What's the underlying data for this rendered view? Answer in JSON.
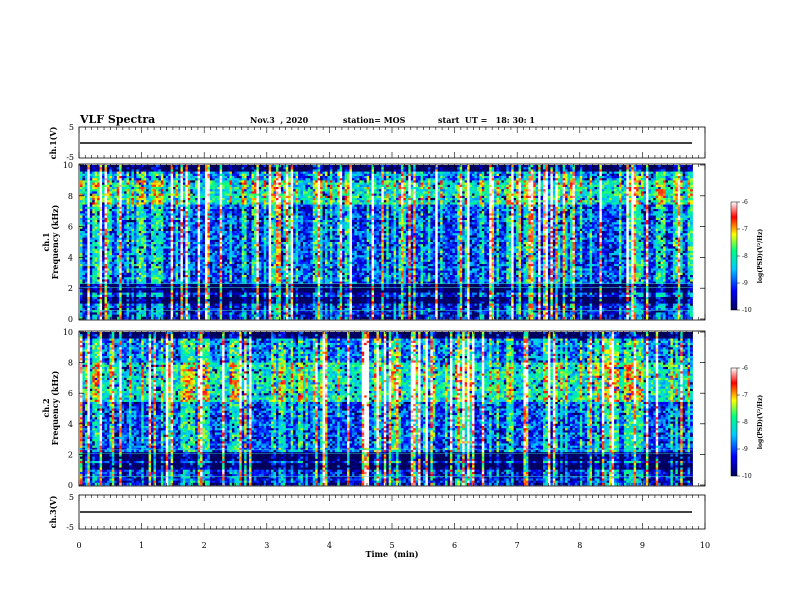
{
  "header": {
    "title": "VLF Spectra",
    "date": "Nov.3  , 2020",
    "station": "station= MOS",
    "start": "start  UT =   18: 30: 1"
  },
  "chart_data": [
    {
      "type": "line",
      "panel": "ch1-waveform",
      "ylabel": "ch.1(V)",
      "ylim": [
        -5,
        5
      ],
      "y_ticks": [
        "5",
        "-5"
      ],
      "x": [
        0,
        9.8
      ],
      "values": [
        0,
        0
      ]
    },
    {
      "type": "heatmap",
      "panel": "ch1-spectrogram",
      "ylabel": "ch.1\nFrequency  (kHz)",
      "ylim": [
        0,
        10
      ],
      "y_ticks": [
        "0",
        "2",
        "4",
        "6",
        "8",
        "10"
      ],
      "xlim": [
        0,
        10
      ],
      "data_end_min": 9.8,
      "peak_band_khz": [
        7.5,
        9.0
      ],
      "strong_band_khz": [
        0,
        2.2
      ],
      "colorbar": {
        "label": "log(PSD)(V²/Hz)",
        "range": [
          -10,
          -6
        ],
        "ticks": [
          "-6",
          "-7",
          "-8",
          "-9",
          "-10"
        ]
      }
    },
    {
      "type": "heatmap",
      "panel": "ch2-spectrogram",
      "ylabel": "ch.2\nFrequency  (kHz)",
      "ylim": [
        0,
        10
      ],
      "y_ticks": [
        "0",
        "2",
        "4",
        "6",
        "8",
        "10"
      ],
      "xlim": [
        0,
        10
      ],
      "data_end_min": 9.8,
      "peak_band_khz": [
        5.5,
        8.0
      ],
      "strong_band_khz": [
        0,
        2.0
      ],
      "colorbar": {
        "label": "log(PSD)(V²/Hz)",
        "range": [
          -10,
          -6
        ],
        "ticks": [
          "-6",
          "-7",
          "-8",
          "-9",
          "-10"
        ]
      }
    },
    {
      "type": "line",
      "panel": "ch3-waveform",
      "ylabel": "ch.3(V)",
      "ylim": [
        -5,
        5
      ],
      "y_ticks": [
        "5",
        "-5"
      ],
      "x": [
        0,
        9.8
      ],
      "values": [
        0,
        0
      ]
    }
  ],
  "x_axis": {
    "label": "Time  (min)",
    "range": [
      0,
      10
    ],
    "ticks": [
      "0",
      "1",
      "2",
      "3",
      "4",
      "5",
      "6",
      "7",
      "8",
      "9",
      "10"
    ]
  },
  "colors": {
    "colormap": [
      "#00005a",
      "#0000ff",
      "#00c8ff",
      "#00ff80",
      "#ffff00",
      "#ff0000",
      "#ffffff"
    ]
  }
}
